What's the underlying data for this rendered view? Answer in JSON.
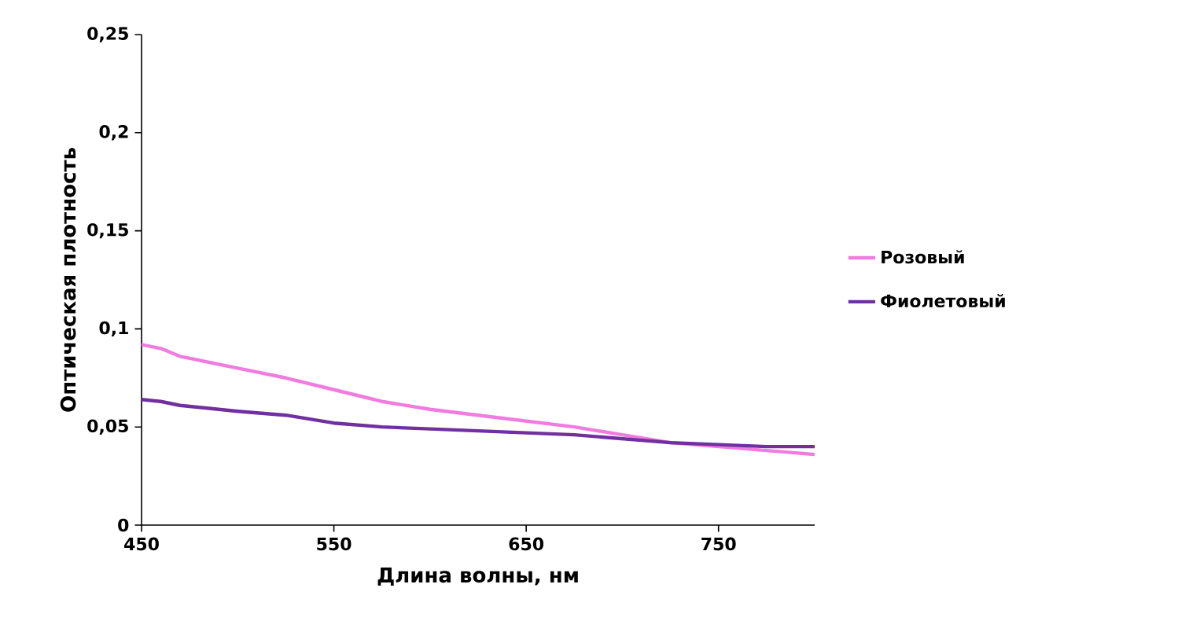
{
  "chart_data": {
    "type": "line",
    "xlabel": "Длина волны, нм",
    "ylabel": "Оптическая плотность",
    "x": [
      450,
      460,
      470,
      500,
      525,
      550,
      575,
      600,
      625,
      650,
      675,
      700,
      725,
      750,
      775,
      800
    ],
    "series": [
      {
        "name": "Розовый",
        "color": "#f07ce0",
        "values": [
          0.092,
          0.09,
          0.086,
          0.08,
          0.075,
          0.069,
          0.063,
          0.059,
          0.056,
          0.053,
          0.05,
          0.046,
          0.042,
          0.04,
          0.038,
          0.036
        ]
      },
      {
        "name": "Фиолетовый",
        "color": "#7030a0",
        "values": [
          0.064,
          0.063,
          0.061,
          0.058,
          0.056,
          0.052,
          0.05,
          0.049,
          0.048,
          0.047,
          0.046,
          0.044,
          0.042,
          0.041,
          0.04,
          0.04
        ]
      }
    ],
    "xlim": [
      450,
      800
    ],
    "ylim": [
      0,
      0.25
    ],
    "xticks": [
      450,
      550,
      650,
      750
    ],
    "yticks": [
      {
        "value": 0,
        "label": "0"
      },
      {
        "value": 0.05,
        "label": "0,05"
      },
      {
        "value": 0.1,
        "label": "0,1"
      },
      {
        "value": 0.15,
        "label": "0,15"
      },
      {
        "value": 0.2,
        "label": "0,2"
      },
      {
        "value": 0.25,
        "label": "0,25"
      }
    ],
    "legend": "right",
    "grid": false,
    "marker": "none",
    "line_style": "solid"
  }
}
